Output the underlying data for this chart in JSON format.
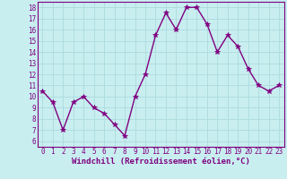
{
  "x": [
    0,
    1,
    2,
    3,
    4,
    5,
    6,
    7,
    8,
    9,
    10,
    11,
    12,
    13,
    14,
    15,
    16,
    17,
    18,
    19,
    20,
    21,
    22,
    23
  ],
  "y": [
    10.5,
    9.5,
    7.0,
    9.5,
    10.0,
    9.0,
    8.5,
    7.5,
    6.5,
    10.0,
    12.0,
    15.5,
    17.5,
    16.0,
    18.0,
    18.0,
    16.5,
    14.0,
    15.5,
    14.5,
    12.5,
    11.0,
    10.5,
    11.0
  ],
  "line_color": "#800080",
  "marker": "*",
  "marker_size": 4,
  "bg_color": "#c8eef0",
  "grid_color": "#b0dde0",
  "xlabel": "Windchill (Refroidissement éolien,°C)",
  "xlim": [
    -0.5,
    23.5
  ],
  "ylim": [
    5.5,
    18.5
  ],
  "yticks": [
    6,
    7,
    8,
    9,
    10,
    11,
    12,
    13,
    14,
    15,
    16,
    17,
    18
  ],
  "xticks": [
    0,
    1,
    2,
    3,
    4,
    5,
    6,
    7,
    8,
    9,
    10,
    11,
    12,
    13,
    14,
    15,
    16,
    17,
    18,
    19,
    20,
    21,
    22,
    23
  ],
  "tick_fontsize": 5.5,
  "xlabel_fontsize": 6.5,
  "axis_color": "#800080",
  "linewidth": 1.0,
  "spine_color": "#800080"
}
